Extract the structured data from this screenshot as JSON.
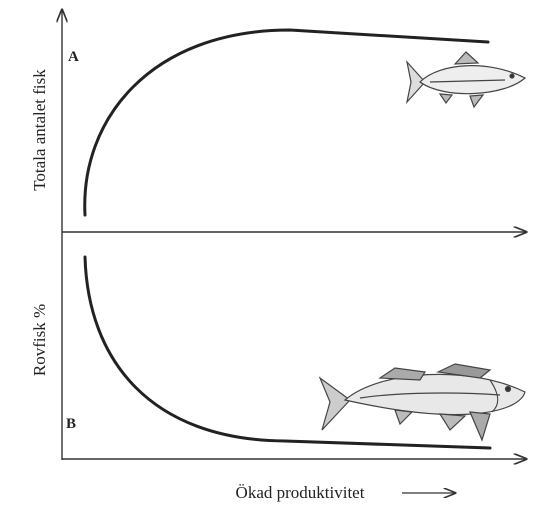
{
  "panels": [
    {
      "label": "A",
      "y_label": "Totala antalet fisk"
    },
    {
      "label": "B",
      "y_label": "Rovfisk %"
    }
  ],
  "x_label": "Ökad produktivitet"
}
